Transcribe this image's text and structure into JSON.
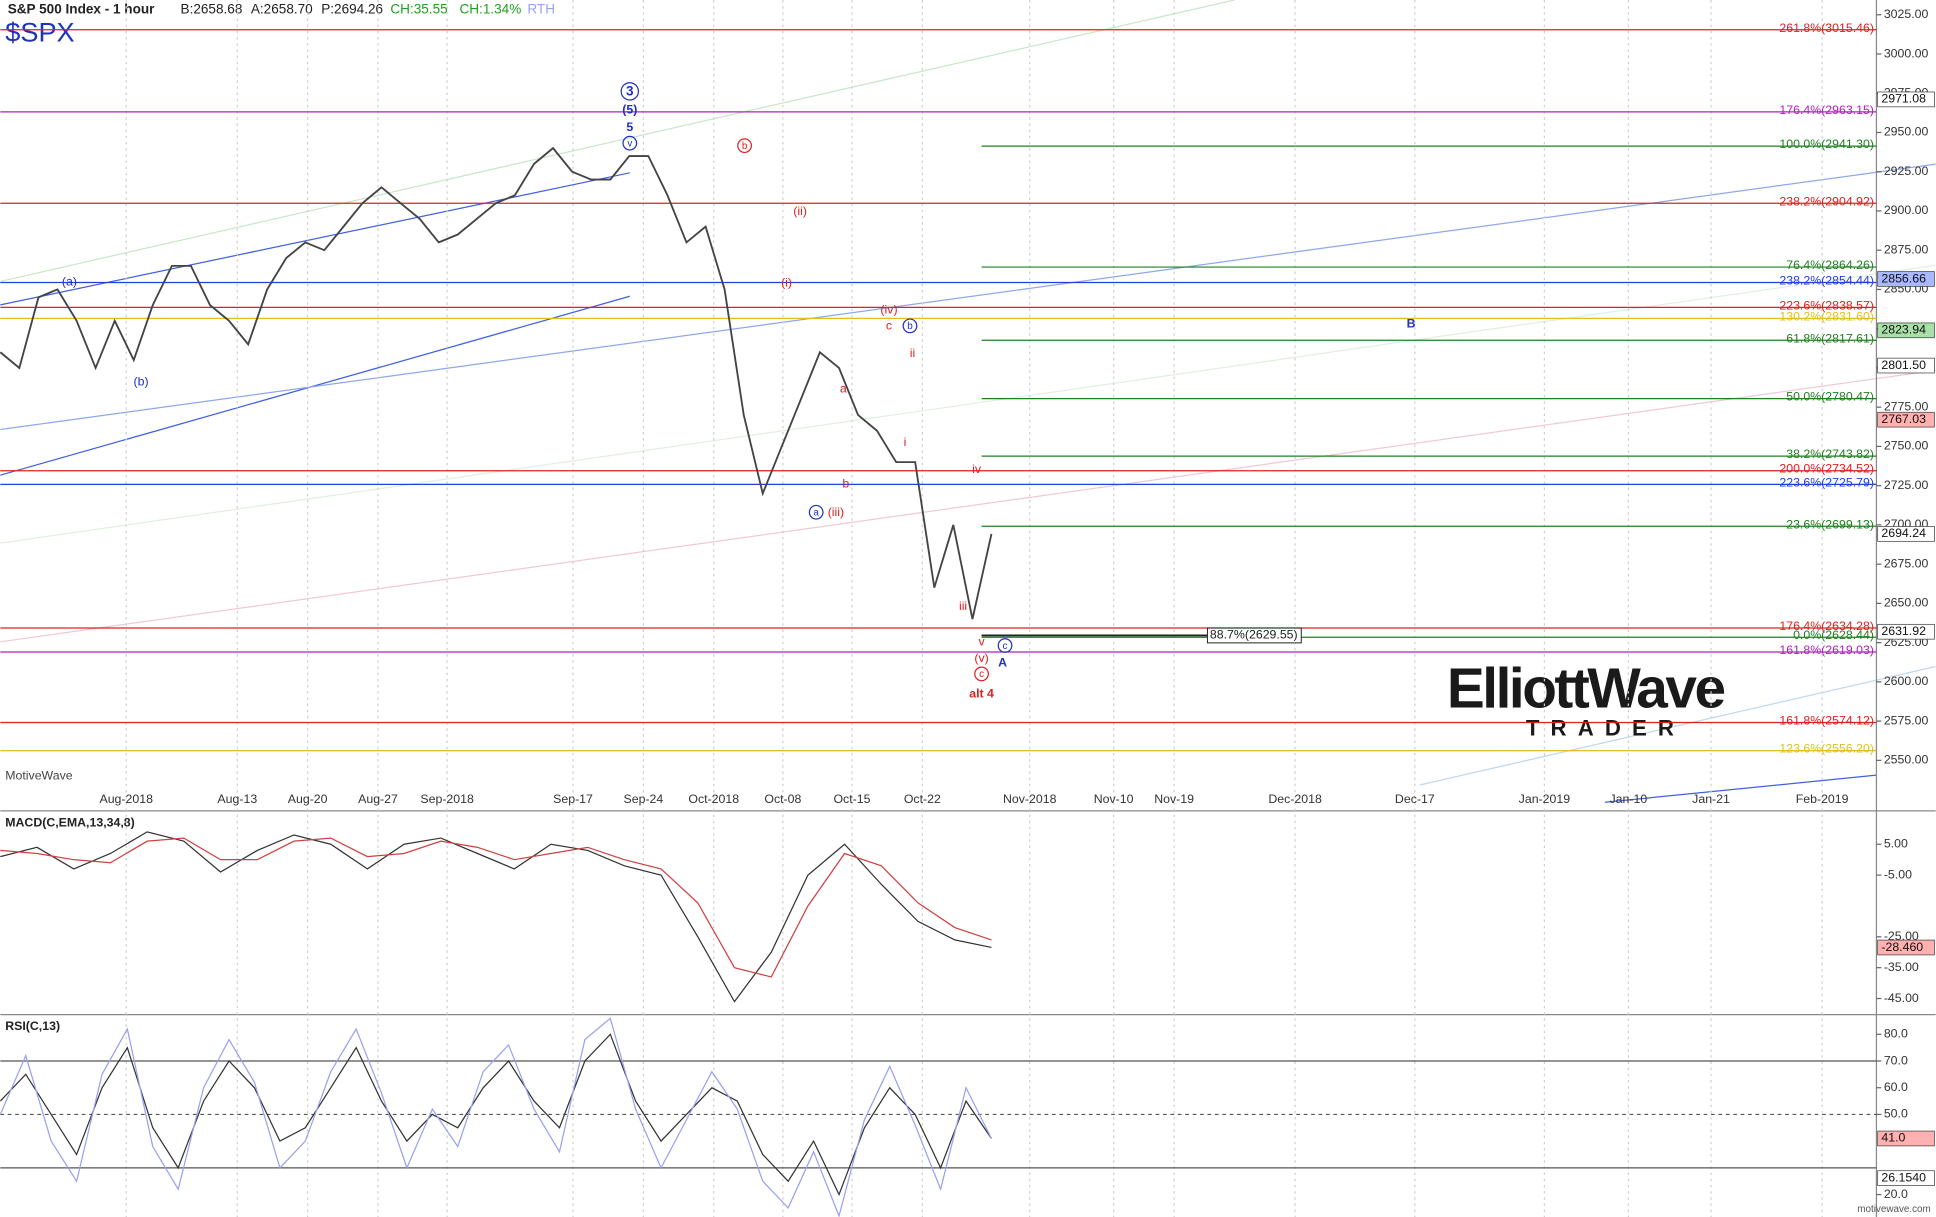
{
  "chart_data": [
    {
      "type": "line",
      "title": "S&P 500 Index - 1 hour",
      "subtitle": "$SPX",
      "quote": [
        "B:2658.68",
        "A:2658.70",
        "P:2694.26",
        "CH:35.55",
        "CH:1.34%",
        "RTH"
      ],
      "watermark": "MotiveWave",
      "xtick_labels": [
        "Aug-2018",
        "Aug-13",
        "Aug-20",
        "Aug-27",
        "Sep-2018",
        "Sep-17",
        "Sep-24",
        "Oct-2018",
        "Oct-08",
        "Oct-15",
        "Oct-22",
        "Nov-2018",
        "Nov-10",
        "Nov-19",
        "Dec-2018",
        "Dec-17",
        "Jan-2019",
        "Jan-10",
        "Jan-21",
        "Feb-2019"
      ],
      "ylim": [
        2533.5,
        3034.4
      ],
      "yticks": [
        {
          "value": 2550,
          "label": "2550.00"
        },
        {
          "value": 2575,
          "label": "2575.00"
        },
        {
          "value": 2600,
          "label": "2600.00"
        },
        {
          "value": 2625,
          "label": "2625.00"
        },
        {
          "value": 2650,
          "label": "2650.00"
        },
        {
          "value": 2675,
          "label": "2675.00"
        },
        {
          "value": 2700,
          "label": "2700.00"
        },
        {
          "value": 2725,
          "label": "2725.00"
        },
        {
          "value": 2750,
          "label": "2750.00"
        },
        {
          "value": 2775,
          "label": "2775.00"
        },
        {
          "value": 2800,
          "label": "2800.00"
        },
        {
          "value": 2825,
          "label": "2825.00"
        },
        {
          "value": 2850,
          "label": "2850.00"
        },
        {
          "value": 2875,
          "label": "2875.00"
        },
        {
          "value": 2900,
          "label": "2900.00"
        },
        {
          "value": 2925,
          "label": "2925.00"
        },
        {
          "value": 2950,
          "label": "2950.00"
        },
        {
          "value": 2975,
          "label": "2975.00"
        },
        {
          "value": 3000,
          "label": "3000.00"
        },
        {
          "value": 3025,
          "label": "3025.00"
        }
      ],
      "series": [
        {
          "color": "#444444",
          "values": [
            2810,
            2800,
            2845,
            2850,
            2830,
            2800,
            2830,
            2805,
            2840,
            2865,
            2865,
            2840,
            2830,
            2815,
            2850,
            2870,
            2880,
            2875,
            2890,
            2905,
            2915,
            2905,
            2895,
            2880,
            2885,
            2895,
            2905,
            2910,
            2930,
            2940,
            2925,
            2920,
            2920,
            2935,
            2935,
            2910,
            2880,
            2890,
            2850,
            2770,
            2720,
            2750,
            2780,
            2810,
            2800,
            2770,
            2760,
            2740,
            2740,
            2660,
            2700,
            2640,
            2694.24
          ]
        }
      ],
      "levels": [
        {
          "label": "261.8%(3015.46)",
          "value": 3015.46,
          "color": "#e02020",
          "extent": "full"
        },
        {
          "label": "176.4%(2963.15)",
          "value": 2963.15,
          "color": "#b020c0",
          "extent": "full"
        },
        {
          "label": "100.0%(2941.30)",
          "value": 2941.3,
          "color": "#208020",
          "extent": "projection"
        },
        {
          "label": "238.2%(2904.92)",
          "value": 2904.92,
          "color": "#e02020",
          "extent": "full"
        },
        {
          "label": "76.4%(2864.26)",
          "value": 2864.26,
          "color": "#208020",
          "extent": "projection"
        },
        {
          "label": "238.2%(2854.44)",
          "value": 2854.44,
          "color": "#2040e0",
          "extent": "full"
        },
        {
          "label": "223.6%(2838.57)",
          "value": 2838.57,
          "color": "#e02020",
          "extent": "full"
        },
        {
          "label": "130.2%(2831.60)",
          "value": 2831.6,
          "color": "#e0c020",
          "extent": "full"
        },
        {
          "label": "61.8%(2817.61)",
          "value": 2817.61,
          "color": "#208020",
          "extent": "projection"
        },
        {
          "label": "50.0%(2780.47)",
          "value": 2780.47,
          "color": "#208020",
          "extent": "projection"
        },
        {
          "label": "38.2%(2743.82)",
          "value": 2743.82,
          "color": "#208020",
          "extent": "projection"
        },
        {
          "label": "200.0%(2734.52)",
          "value": 2734.52,
          "color": "#e02020",
          "extent": "full"
        },
        {
          "label": "223.6%(2725.79)",
          "value": 2725.79,
          "color": "#2040e0",
          "extent": "full"
        },
        {
          "label": "23.6%(2699.13)",
          "value": 2699.13,
          "color": "#208020",
          "extent": "projection"
        },
        {
          "label": "176.4%(2634.28)",
          "value": 2634.28,
          "color": "#e02020",
          "extent": "full"
        },
        {
          "label": "0.0%(2628.44)",
          "value": 2628.44,
          "color": "#208020",
          "extent": "projection"
        },
        {
          "label": "161.8%(2619.03)",
          "value": 2619.03,
          "color": "#b020c0",
          "extent": "full"
        },
        {
          "label": "161.8%(2574.12)",
          "value": 2574.12,
          "color": "#e02020",
          "extent": "full"
        },
        {
          "label": "123.6%(2556.20)",
          "value": 2556.2,
          "color": "#e0c020",
          "extent": "full"
        }
      ],
      "boxed_level": {
        "label": "88.7%(2629.55)",
        "value": 2629.55
      },
      "axis_badges": [
        {
          "label": "2971.08",
          "value": 2971.08,
          "color": "#ffffff"
        },
        {
          "label": "2856.66",
          "value": 2856.66,
          "color": "#aab8ff"
        },
        {
          "label": "2823.94",
          "value": 2823.94,
          "color": "#a8e0a8"
        },
        {
          "label": "2801.50",
          "value": 2801.5,
          "color": "#ffffff"
        },
        {
          "label": "2767.03",
          "value": 2767.03,
          "color": "#ffb0b0"
        },
        {
          "label": "2694.24",
          "value": 2694.24,
          "color": "#ffffff"
        },
        {
          "label": "2631.92",
          "value": 2631.92,
          "color": "#ffffff"
        }
      ],
      "annotations": [
        {
          "text": "(a)",
          "color": "#2030c0"
        },
        {
          "text": "(b)",
          "color": "#2030c0"
        },
        {
          "text": "3",
          "color": "#2030c0",
          "circled": true
        },
        {
          "text": "(5)",
          "color": "#2030c0"
        },
        {
          "text": "5",
          "color": "#2030c0"
        },
        {
          "text": "v",
          "color": "#2030c0",
          "circled": true
        },
        {
          "text": "b",
          "color": "#e02020",
          "circled": true
        },
        {
          "text": "(ii)",
          "color": "#e02020"
        },
        {
          "text": "(i)",
          "color": "#e02020"
        },
        {
          "text": "(iv)",
          "color": "#e02020"
        },
        {
          "text": "c",
          "color": "#e02020"
        },
        {
          "text": "b",
          "color": "#2030c0",
          "circled": true
        },
        {
          "text": "ii",
          "color": "#e02020"
        },
        {
          "text": "a",
          "color": "#e02020"
        },
        {
          "text": "i",
          "color": "#e02020"
        },
        {
          "text": "b",
          "color": "#e02020"
        },
        {
          "text": "a",
          "color": "#2030c0",
          "circled": true
        },
        {
          "text": "(iii)",
          "color": "#e02020"
        },
        {
          "text": "iv",
          "color": "#e02020"
        },
        {
          "text": "iii",
          "color": "#e02020"
        },
        {
          "text": "v",
          "color": "#e02020"
        },
        {
          "text": "(v)",
          "color": "#e02020"
        },
        {
          "text": "c",
          "color": "#e02020",
          "circled": true
        },
        {
          "text": "c",
          "color": "#2030c0",
          "circled": true
        },
        {
          "text": "A",
          "color": "#2030c0"
        },
        {
          "text": "alt 4",
          "color": "#e02020"
        },
        {
          "text": "B",
          "color": "#2030c0"
        }
      ]
    },
    {
      "type": "line",
      "title": "MACD(C,EMA,13,34,8)",
      "ylim": [
        -48.6,
        14.6
      ],
      "yticks": [
        {
          "value": 5,
          "label": "5.00"
        },
        {
          "value": -5,
          "label": "-5.00"
        },
        {
          "value": -25,
          "label": "-25.00"
        },
        {
          "value": -35,
          "label": "-35.00"
        },
        {
          "value": -45,
          "label": "-45.00"
        }
      ],
      "series": [
        {
          "color": "#333333",
          "values": [
            1,
            4,
            -3,
            2,
            9,
            6,
            -4,
            3,
            8,
            5,
            -3,
            5,
            7,
            2,
            -3,
            5,
            3,
            -2,
            -5,
            -25,
            -46,
            -30,
            -5,
            5,
            -8,
            -20,
            -26,
            -28.46
          ]
        },
        {
          "color": "#d04040",
          "values": [
            3,
            2,
            0,
            -1,
            6,
            7,
            0,
            0,
            6,
            7,
            1,
            2,
            6,
            4,
            0,
            2,
            4,
            0,
            -3,
            -14,
            -35,
            -38,
            -15,
            2,
            -2,
            -14,
            -22,
            -26
          ]
        }
      ],
      "axis_badges": [
        {
          "label": "-28.460",
          "value": -28.46,
          "color": "#ffb0b0"
        }
      ]
    },
    {
      "type": "line",
      "title": "RSI(C,13)",
      "ylim": [
        11.6,
        86
      ],
      "yticks": [
        {
          "value": 80,
          "label": "80.0"
        },
        {
          "value": 70,
          "label": "70.0"
        },
        {
          "value": 60,
          "label": "60.0"
        },
        {
          "value": 50,
          "label": "50.0"
        },
        {
          "value": 20,
          "label": "20.0"
        }
      ],
      "levels": [
        70,
        50,
        30
      ],
      "series": [
        {
          "color": "#333333",
          "values": [
            55,
            65,
            50,
            35,
            60,
            75,
            45,
            30,
            55,
            70,
            60,
            40,
            45,
            60,
            75,
            55,
            40,
            50,
            45,
            60,
            70,
            55,
            45,
            70,
            80,
            55,
            40,
            50,
            60,
            55,
            35,
            25,
            40,
            20,
            45,
            60,
            50,
            30,
            55,
            41
          ]
        },
        {
          "color": "#9aa0f0",
          "values": [
            50,
            72,
            40,
            25,
            65,
            82,
            38,
            22,
            60,
            78,
            62,
            30,
            40,
            66,
            82,
            58,
            30,
            52,
            38,
            66,
            76,
            52,
            36,
            78,
            86,
            52,
            30,
            48,
            66,
            52,
            25,
            15,
            36,
            12,
            48,
            68,
            46,
            22,
            60,
            41
          ]
        }
      ],
      "axis_badges": [
        {
          "label": "41.0",
          "value": 41.0,
          "color": "#ffb0b0"
        },
        {
          "label": "26.1540",
          "value": 26.154,
          "color": "#ffffff"
        }
      ]
    }
  ],
  "logo": {
    "name": "ElliottWave",
    "tagline": "TRADER"
  },
  "footer": "motivewave.com"
}
